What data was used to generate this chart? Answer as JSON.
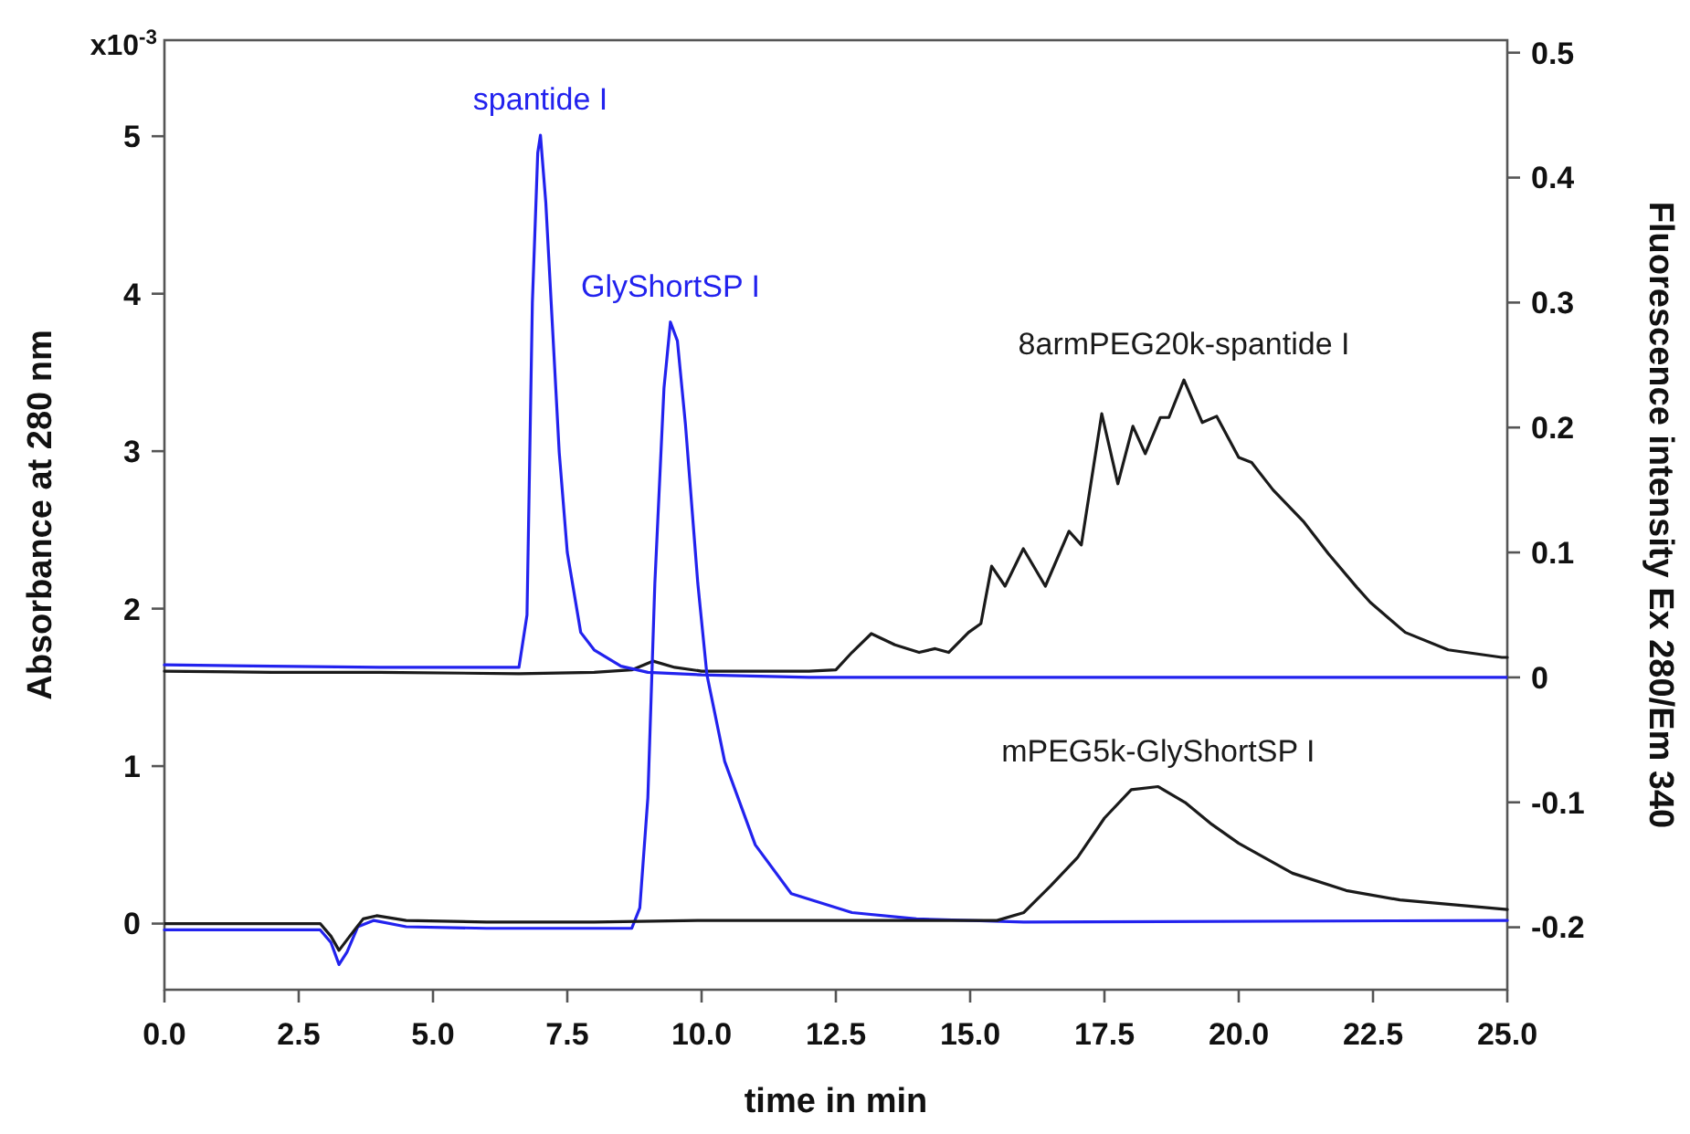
{
  "chart_data": {
    "type": "line",
    "xlabel": "time in min",
    "ylabel": "Absorbance at 280 nm",
    "y2label": "Fluorescence intensity Ex 280/Em 340",
    "annotations": [
      "x10$^{-3}$"
    ],
    "xlim": [
      0,
      25
    ],
    "xticks": [
      {
        "value": 0,
        "label": "0.0"
      },
      {
        "value": 2.5,
        "label": "2.5"
      },
      {
        "value": 5,
        "label": "5.0"
      },
      {
        "value": 7.5,
        "label": "7.5"
      },
      {
        "value": 10,
        "label": "10.0"
      },
      {
        "value": 12.5,
        "label": "12.5"
      },
      {
        "value": 15,
        "label": "15.0"
      },
      {
        "value": 17.5,
        "label": "17.5"
      },
      {
        "value": 20,
        "label": "20.0"
      },
      {
        "value": 22.5,
        "label": "22.5"
      },
      {
        "value": 25,
        "label": "25.0"
      }
    ],
    "ylim": [
      -0.42,
      5.61
    ],
    "yticks": [
      0,
      1,
      2,
      3,
      4,
      5
    ],
    "y2lim": [
      -0.25,
      0.51
    ],
    "y2ticks": [
      -0.2,
      -0.1,
      0,
      0.1,
      0.2,
      0.3,
      0.4,
      0.5
    ],
    "grid": false,
    "series": [
      {
        "name": "8armPEG20k-spantide I",
        "color": "#1a1a1a",
        "axis": "y2",
        "x": [
          0,
          2,
          4,
          6.6,
          8,
          8.7,
          9.1,
          9.5,
          10,
          12,
          12.5,
          12.8,
          13.16,
          13.6,
          14.05,
          14.35,
          14.6,
          14.97,
          15.2,
          15.4,
          15.65,
          15.99,
          16.4,
          16.84,
          17.07,
          17.45,
          17.75,
          18.03,
          18.26,
          18.54,
          18.7,
          18.98,
          19.32,
          19.59,
          20.0,
          20.24,
          20.64,
          21.2,
          21.67,
          22.2,
          22.45,
          23.1,
          23.9,
          24.9,
          25
        ],
        "values": [
          0.005,
          0.004,
          0.004,
          0.003,
          0.004,
          0.006,
          0.013,
          0.008,
          0.005,
          0.005,
          0.006,
          0.02,
          0.035,
          0.026,
          0.02,
          0.023,
          0.02,
          0.036,
          0.043,
          0.089,
          0.073,
          0.103,
          0.073,
          0.117,
          0.106,
          0.211,
          0.155,
          0.201,
          0.179,
          0.208,
          0.208,
          0.238,
          0.204,
          0.209,
          0.176,
          0.172,
          0.15,
          0.125,
          0.099,
          0.072,
          0.06,
          0.036,
          0.022,
          0.016,
          0.016
        ]
      },
      {
        "name": "spantide I",
        "color": "#2222ee",
        "axis": "y2",
        "x": [
          0,
          2,
          4,
          6,
          6.6,
          6.75,
          6.85,
          6.95,
          7.0,
          7.1,
          7.2,
          7.35,
          7.5,
          7.75,
          8.0,
          8.5,
          9,
          10,
          12,
          15,
          20,
          25
        ],
        "values": [
          0.01,
          0.009,
          0.008,
          0.008,
          0.008,
          0.05,
          0.3,
          0.42,
          0.434,
          0.38,
          0.3,
          0.18,
          0.1,
          0.036,
          0.022,
          0.009,
          0.004,
          0.002,
          0,
          0,
          0,
          0
        ]
      },
      {
        "name": "GlyShortSP I",
        "color": "#2222ee",
        "x": [
          0,
          2,
          2.9,
          3.1,
          3.25,
          3.4,
          3.6,
          3.9,
          4.5,
          6,
          8.7,
          8.85,
          9.0,
          9.13,
          9.3,
          9.42,
          9.55,
          9.7,
          9.93,
          10.1,
          10.43,
          11.0,
          11.67,
          12.8,
          14,
          16,
          25
        ],
        "values": [
          -0.04,
          -0.04,
          -0.04,
          -0.12,
          -0.26,
          -0.18,
          -0.02,
          0.02,
          -0.02,
          -0.03,
          -0.03,
          0.1,
          0.8,
          2.16,
          3.4,
          3.82,
          3.7,
          3.17,
          2.16,
          1.58,
          1.03,
          0.5,
          0.19,
          0.07,
          0.03,
          0.01,
          0.02
        ]
      },
      {
        "name": "mPEG5k-GlyShortSP I",
        "color": "#1a1a1a",
        "x": [
          0,
          2,
          2.9,
          3.1,
          3.25,
          3.45,
          3.7,
          3.95,
          4.5,
          6,
          8,
          10,
          12,
          14,
          15.5,
          16,
          16.5,
          17,
          17.5,
          18,
          18.5,
          19,
          19.5,
          20,
          21,
          22,
          23,
          24,
          25
        ],
        "values": [
          0,
          0,
          0,
          -0.08,
          -0.17,
          -0.08,
          0.03,
          0.05,
          0.02,
          0.01,
          0.01,
          0.02,
          0.02,
          0.02,
          0.02,
          0.07,
          0.24,
          0.42,
          0.67,
          0.85,
          0.87,
          0.77,
          0.63,
          0.51,
          0.32,
          0.21,
          0.15,
          0.12,
          0.09
        ]
      }
    ]
  }
}
